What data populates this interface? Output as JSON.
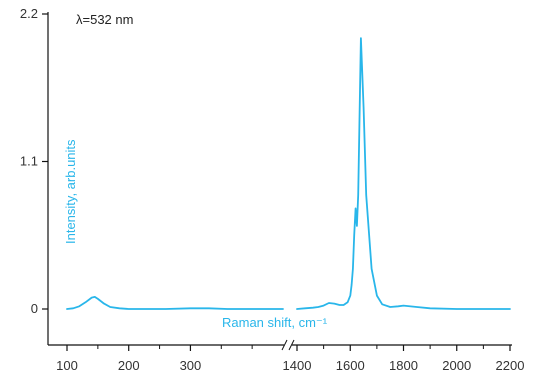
{
  "colors": {
    "series": "#29b6ea",
    "axis": "#111111",
    "text": "#333333"
  },
  "chart_data": {
    "type": "line",
    "title": "",
    "annotation": "λ=532 nm",
    "xlabel": "Raman shift, cm⁻¹",
    "ylabel": "Intensity, arb.units",
    "ylim": [
      0,
      2.2
    ],
    "y_ticks": [
      0,
      1.1,
      2.2
    ],
    "y_tick_labels": [
      "0",
      "1.1",
      "2.2"
    ],
    "x_axis_break": [
      450,
      1400
    ],
    "x_ticks_left": [
      100,
      200,
      300
    ],
    "x_ticks_right": [
      1400,
      1600,
      1800,
      2000,
      2200
    ],
    "x_tick_labels": [
      "100",
      "200",
      "300",
      "1400",
      "1600",
      "1800",
      "2000",
      "2200"
    ],
    "grid": false,
    "legend": "none",
    "series": [
      {
        "segments": [
          {
            "x": [
              100,
              110,
              120,
              130,
              140,
              145,
              150,
              160,
              170,
              185,
              200,
              230,
              260,
              300,
              330,
              360,
              400,
              450
            ],
            "y": [
              0.0,
              0.005,
              0.02,
              0.05,
              0.085,
              0.09,
              0.075,
              0.04,
              0.015,
              0.005,
              0.0,
              0.0,
              0.0,
              0.005,
              0.005,
              0.0,
              0.0,
              0.0
            ]
          },
          {
            "x": [
              1400,
              1430,
              1460,
              1480,
              1500,
              1520,
              1540,
              1560,
              1575,
              1590,
              1600,
              1605,
              1610,
              1615,
              1620,
              1625,
              1630,
              1640,
              1650,
              1660,
              1680,
              1700,
              1720,
              1750,
              1780,
              1800,
              1850,
              1900,
              2000,
              2100,
              2200
            ],
            "y": [
              0.0,
              0.005,
              0.01,
              0.015,
              0.025,
              0.045,
              0.04,
              0.03,
              0.03,
              0.05,
              0.1,
              0.18,
              0.3,
              0.55,
              0.75,
              0.62,
              0.85,
              2.02,
              1.5,
              0.85,
              0.3,
              0.1,
              0.035,
              0.015,
              0.02,
              0.025,
              0.015,
              0.005,
              0.0,
              0.0,
              0.0
            ]
          }
        ]
      }
    ]
  }
}
